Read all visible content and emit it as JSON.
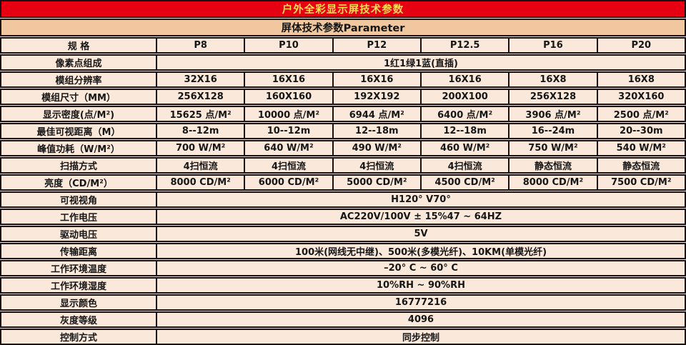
{
  "title": "户外全彩显示屏技术参数",
  "subtitle": "屏体技术参数Parameter",
  "colors": {
    "title_bar_bg": "#e50012",
    "title_text": "#ffde4f",
    "subtitle_bar_bg": "#f0c79e",
    "row_bg": "#fae8db",
    "border": "#1a1212"
  },
  "header": {
    "label": "规  格",
    "cols": [
      "P8",
      "P10",
      "P12",
      "P12.5",
      "P16",
      "P20"
    ]
  },
  "pixel": {
    "label": "像素点组成",
    "value": "1红1绿1蓝(直插)"
  },
  "spec_rows": [
    {
      "label": "模组分辨率",
      "values": [
        "32X16",
        "16X16",
        "16X16",
        "16X16",
        "16X8",
        "16X8"
      ]
    },
    {
      "label": "模组尺寸（MM）",
      "values": [
        "256X128",
        "160X160",
        "192X192",
        "200X100",
        "256X128",
        "320X160"
      ]
    },
    {
      "label": "显示密度(点/M²)",
      "values": [
        "15625 点/M²",
        "10000 点/M²",
        "6944 点/M²",
        "6400 点/M²",
        "3906 点/M²",
        "2500 点/M²"
      ]
    },
    {
      "label": "最佳可视距离（M）",
      "values": [
        "8--12m",
        "10--12m",
        "12--18m",
        "12--18m",
        "16--24m",
        "20--30m"
      ]
    },
    {
      "label": "峰值功耗（W/M²）",
      "values": [
        "700 W/M²",
        "640 W/M²",
        "490 W/M²",
        "460 W/M²",
        "750 W/M²",
        "540 W/M²"
      ]
    },
    {
      "label": "扫描方式",
      "values": [
        "4扫恒流",
        "4扫恒流",
        "4扫恒流",
        "4扫恒流",
        "静态恒流",
        "静态恒流"
      ]
    },
    {
      "label": "亮度（CD/M²）",
      "values": [
        "8000 CD/M²",
        "6000 CD/M²",
        "5000 CD/M²",
        "4500 CD/M²",
        "8000 CD/M²",
        "7500 CD/M²"
      ]
    }
  ],
  "span_rows": [
    {
      "label": "可视视角",
      "value": "H120°  V70°"
    },
    {
      "label": "工作电压",
      "value": "AC220V/100V ± 15%47 ~ 64HZ"
    },
    {
      "label": "驱动电压",
      "value": "5V"
    },
    {
      "label": "传输距离",
      "value": "100米(网线无中继)、500米(多模光纤)、10KM(单模光纤)"
    },
    {
      "label": "工作环境温度",
      "value": "–20° C ~ 60° C"
    },
    {
      "label": "工作环境湿度",
      "value": "10%RH ~ 90%RH"
    },
    {
      "label": "显示颜色",
      "value": "16777216"
    },
    {
      "label": "灰度等级",
      "value": "4096"
    },
    {
      "label": "控制方式",
      "value": "同步控制"
    }
  ]
}
